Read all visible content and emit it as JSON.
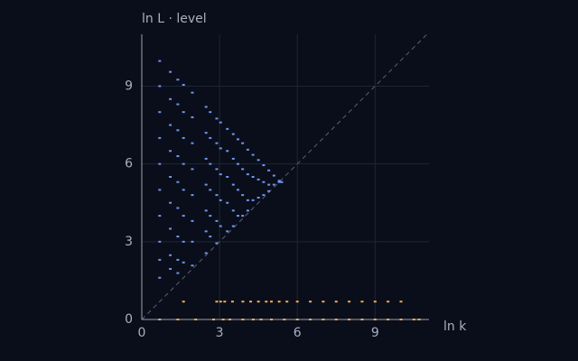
{
  "chart_data": {
    "type": "scatter",
    "xlabel": "ln k",
    "ylabel": "ln L · level",
    "xlim": [
      0,
      11.08
    ],
    "ylim": [
      0,
      11
    ],
    "xticks": [
      0,
      3,
      6,
      9
    ],
    "yticks": [
      0,
      3,
      6,
      9
    ],
    "grid": true,
    "diagonal": true,
    "series": [
      {
        "color": "#6e95ef",
        "x": [
          0.69,
          0.69,
          0.69,
          0.69,
          0.69,
          0.69,
          0.69,
          0.69,
          0.69,
          0.69,
          1.1,
          1.1,
          1.1,
          1.1,
          1.1,
          1.1,
          1.1,
          1.1,
          1.1,
          1.39,
          1.39,
          1.39,
          1.39,
          1.39,
          1.39,
          1.39,
          1.39,
          1.39,
          1.61,
          1.61,
          1.61,
          1.61,
          1.61,
          1.61,
          1.61,
          1.61,
          1.95,
          1.95,
          1.95,
          1.95,
          1.95,
          1.95,
          1.95,
          1.95,
          2.48,
          2.48,
          2.48,
          2.48,
          2.48,
          2.48,
          2.48,
          2.64,
          2.64,
          2.64,
          2.64,
          2.64,
          2.64,
          2.89,
          2.89,
          2.89,
          2.89,
          2.89,
          2.89,
          3.04,
          3.04,
          3.04,
          3.04,
          3.04,
          3.3,
          3.3,
          3.3,
          3.3,
          3.3,
          3.53,
          3.53,
          3.53,
          3.53,
          3.53,
          3.71,
          3.71,
          3.71,
          3.71,
          3.89,
          3.89,
          3.89,
          3.89,
          4.09,
          4.09,
          4.09,
          4.09,
          4.29,
          4.29,
          4.29,
          4.5,
          4.5,
          4.5,
          4.7,
          4.7,
          4.7,
          4.9,
          4.9,
          4.9,
          5.1,
          5.1,
          5.3,
          5.3,
          5.4
        ],
        "y": [
          9.97,
          9.0,
          8.0,
          7.0,
          6.0,
          5.0,
          4.0,
          3.0,
          2.3,
          1.61,
          9.55,
          8.5,
          7.5,
          6.5,
          5.5,
          4.5,
          3.5,
          2.48,
          1.95,
          9.25,
          8.3,
          7.3,
          6.3,
          5.3,
          4.3,
          3.2,
          2.3,
          1.79,
          9.05,
          8.0,
          7.0,
          6.0,
          5.0,
          4.0,
          3.0,
          2.2,
          8.75,
          7.8,
          6.8,
          5.8,
          4.8,
          3.8,
          3.0,
          2.08,
          8.2,
          7.2,
          6.2,
          5.2,
          4.2,
          3.4,
          2.56,
          8.0,
          7.0,
          6.0,
          5.0,
          4.0,
          3.2,
          7.75,
          6.8,
          5.8,
          4.8,
          3.8,
          2.94,
          7.6,
          6.6,
          5.6,
          4.6,
          3.6,
          7.35,
          6.5,
          5.5,
          4.5,
          3.4,
          7.15,
          6.2,
          5.2,
          4.2,
          3.6,
          6.95,
          6.0,
          5.0,
          4.0,
          6.8,
          5.8,
          4.8,
          4.0,
          6.55,
          5.6,
          4.6,
          4.2,
          6.35,
          5.5,
          4.6,
          6.15,
          5.4,
          4.7,
          5.95,
          5.3,
          4.8,
          5.75,
          5.2,
          4.95,
          5.55,
          5.2,
          5.35,
          5.3,
          5.3
        ]
      },
      {
        "color": "#f2a95e",
        "x": [
          1.61,
          2.89,
          3.04,
          3.2,
          3.5,
          3.9,
          4.2,
          4.5,
          4.8,
          5.0,
          5.3,
          5.6,
          6.0,
          6.5,
          7.0,
          7.5,
          8.0,
          8.5,
          9.0,
          9.5,
          10.0,
          0.69,
          1.39,
          2.08,
          2.77,
          3.14,
          3.4,
          3.9,
          4.3,
          4.6,
          5.0,
          5.5,
          6.0,
          6.5,
          7.0,
          7.5,
          8.0,
          8.5,
          9.0,
          9.5,
          10.0,
          10.5,
          10.7
        ],
        "y": [
          0.69,
          0.69,
          0.69,
          0.69,
          0.69,
          0.69,
          0.69,
          0.69,
          0.69,
          0.69,
          0.69,
          0.69,
          0.69,
          0.69,
          0.69,
          0.69,
          0.69,
          0.69,
          0.69,
          0.69,
          0.69,
          0,
          0,
          0,
          0,
          0,
          0,
          0,
          0,
          0,
          0,
          0,
          0,
          0,
          0,
          0,
          0,
          0,
          0,
          0,
          0,
          0,
          0
        ]
      }
    ]
  }
}
